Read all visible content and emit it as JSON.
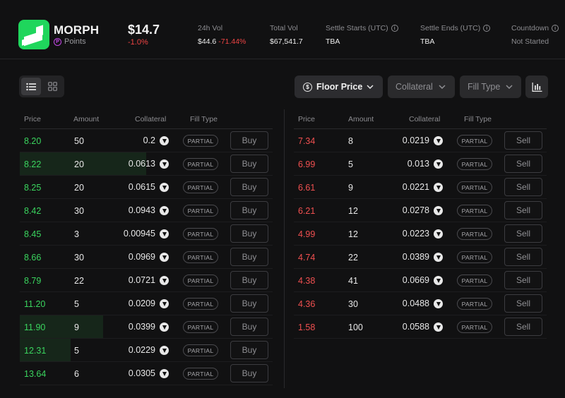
{
  "token": {
    "name": "MORPH",
    "points_label": "Points",
    "price": "$14.7",
    "change": "-1.0%"
  },
  "stats": {
    "vol24": {
      "label": "24h Vol",
      "value": "$44.6",
      "change": "-71.44%"
    },
    "total": {
      "label": "Total Vol",
      "value": "$67,541.7"
    },
    "settle_start": {
      "label": "Settle Starts (UTC)",
      "value": "TBA"
    },
    "settle_end": {
      "label": "Settle Ends (UTC)",
      "value": "TBA"
    },
    "countdown": {
      "label": "Countdown",
      "value": "Not Started"
    }
  },
  "toolbar": {
    "floor_label": "Floor Price",
    "collateral_label": "Collateral",
    "fill_label": "Fill Type"
  },
  "columns": {
    "price": "Price",
    "amount": "Amount",
    "collateral": "Collateral",
    "fill": "Fill Type"
  },
  "buy_orders": [
    {
      "price": "8.20",
      "amount": "50",
      "collateral": "0.2",
      "fill": "PARTIAL",
      "action": "Buy",
      "depth": 0
    },
    {
      "price": "8.22",
      "amount": "20",
      "collateral": "0.0613",
      "fill": "PARTIAL",
      "action": "Buy",
      "depth": 0.5
    },
    {
      "price": "8.25",
      "amount": "20",
      "collateral": "0.0615",
      "fill": "PARTIAL",
      "action": "Buy",
      "depth": 0
    },
    {
      "price": "8.42",
      "amount": "30",
      "collateral": "0.0943",
      "fill": "PARTIAL",
      "action": "Buy",
      "depth": 0
    },
    {
      "price": "8.45",
      "amount": "3",
      "collateral": "0.00945",
      "fill": "PARTIAL",
      "action": "Buy",
      "depth": 0
    },
    {
      "price": "8.66",
      "amount": "30",
      "collateral": "0.0969",
      "fill": "PARTIAL",
      "action": "Buy",
      "depth": 0
    },
    {
      "price": "8.79",
      "amount": "22",
      "collateral": "0.0721",
      "fill": "PARTIAL",
      "action": "Buy",
      "depth": 0
    },
    {
      "price": "11.20",
      "amount": "5",
      "collateral": "0.0209",
      "fill": "PARTIAL",
      "action": "Buy",
      "depth": 0
    },
    {
      "price": "11.90",
      "amount": "9",
      "collateral": "0.0399",
      "fill": "PARTIAL",
      "action": "Buy",
      "depth": 0.33
    },
    {
      "price": "12.31",
      "amount": "5",
      "collateral": "0.0229",
      "fill": "PARTIAL",
      "action": "Buy",
      "depth": 0.2
    },
    {
      "price": "13.64",
      "amount": "6",
      "collateral": "0.0305",
      "fill": "PARTIAL",
      "action": "Buy",
      "depth": 0
    }
  ],
  "sell_orders": [
    {
      "price": "7.34",
      "amount": "8",
      "collateral": "0.0219",
      "fill": "PARTIAL",
      "action": "Sell"
    },
    {
      "price": "6.99",
      "amount": "5",
      "collateral": "0.013",
      "fill": "PARTIAL",
      "action": "Sell"
    },
    {
      "price": "6.61",
      "amount": "9",
      "collateral": "0.0221",
      "fill": "PARTIAL",
      "action": "Sell"
    },
    {
      "price": "6.21",
      "amount": "12",
      "collateral": "0.0278",
      "fill": "PARTIAL",
      "action": "Sell"
    },
    {
      "price": "4.99",
      "amount": "12",
      "collateral": "0.0223",
      "fill": "PARTIAL",
      "action": "Sell"
    },
    {
      "price": "4.74",
      "amount": "22",
      "collateral": "0.0389",
      "fill": "PARTIAL",
      "action": "Sell"
    },
    {
      "price": "4.38",
      "amount": "41",
      "collateral": "0.0669",
      "fill": "PARTIAL",
      "action": "Sell"
    },
    {
      "price": "4.36",
      "amount": "30",
      "collateral": "0.0488",
      "fill": "PARTIAL",
      "action": "Sell"
    },
    {
      "price": "1.58",
      "amount": "100",
      "collateral": "0.0588",
      "fill": "PARTIAL",
      "action": "Sell"
    }
  ],
  "colors": {
    "buy": "#3ad45e",
    "sell": "#f05050",
    "brand": "#1fd65c",
    "points": "#c447e6"
  },
  "icons": [
    "list-view-icon",
    "grid-view-icon",
    "dollar-icon",
    "chevron-down-icon",
    "bar-chart-icon",
    "eth-icon",
    "info-icon"
  ]
}
